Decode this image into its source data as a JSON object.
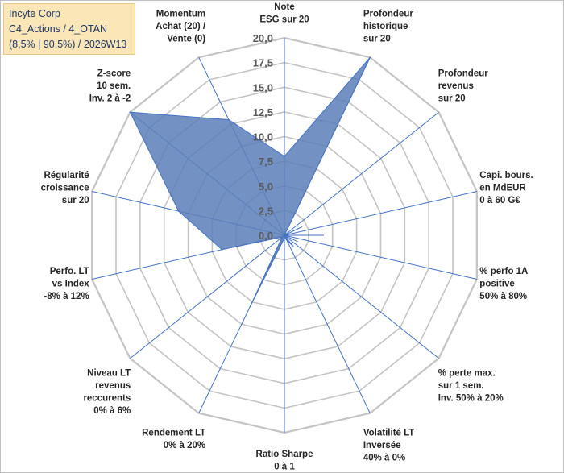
{
  "title_box": {
    "line1": "Incyte Corp",
    "line2": "C4_Actions / 4_OTAN",
    "line3": "(8,5% | 90,5%) / 2026W13"
  },
  "chart_data": {
    "type": "radar",
    "rmin": 0,
    "rmax": 20,
    "tick_step": 2.5,
    "tick_labels": [
      "0,0",
      "2,5",
      "5,0",
      "7,5",
      "10,0",
      "12,5",
      "15,0",
      "17,5",
      "20,0"
    ],
    "fill_color": "#5b7fb8",
    "line_color": "#4472c4",
    "grid_color": "#c4c4c4",
    "axes": [
      {
        "label": [
          "Note",
          "ESG sur 20"
        ],
        "value": 8.0
      },
      {
        "label": [
          "Profondeur",
          "historique",
          "sur 20"
        ],
        "value": 20.0
      },
      {
        "label": [
          "Profondeur",
          "revenus",
          "sur 20"
        ],
        "value": 0.0
      },
      {
        "label": [
          "Capi. bours.",
          "en MdEUR",
          "0 à 60 G€"
        ],
        "value": 0.0
      },
      {
        "label": [
          "% perfo 1A",
          "positive",
          "50% à 80%"
        ],
        "value": 0.0
      },
      {
        "label": [
          "% perte max.",
          "sur 1 sem.",
          "Inv. 50% à 20%"
        ],
        "value": 0.0
      },
      {
        "label": [
          "Volatilité LT",
          "Inversée",
          "40% à 0%"
        ],
        "value": 0.5
      },
      {
        "label": [
          "Ratio Sharpe",
          "0 à 1"
        ],
        "value": 0.3
      },
      {
        "label": [
          "Rendement LT",
          "0% à 20%"
        ],
        "value": 8.0
      },
      {
        "label": [
          "Niveau LT",
          "revenus",
          "reccurents",
          "0% à 6%"
        ],
        "value": 0.3
      },
      {
        "label": [
          "Perfo. LT",
          "vs Index",
          "-8% à 12%"
        ],
        "value": 6.5
      },
      {
        "label": [
          "Régularité",
          "croissance",
          "sur 20"
        ],
        "value": 11.0
      },
      {
        "label": [
          "Z-score",
          "10 sem.",
          "Inv. 2 à -2"
        ],
        "value": 20.0
      },
      {
        "label": [
          "Momentum",
          "Achat (20) /",
          "Vente (0)"
        ],
        "value": 13.0
      }
    ],
    "extra_points": [
      {
        "between": [
          2,
          3
        ],
        "value": 2.0,
        "frac": 0.5
      },
      {
        "between": [
          3,
          4
        ],
        "value": 4.0,
        "frac": 0.5
      },
      {
        "between": [
          4,
          5
        ],
        "value": 1.5,
        "frac": 0.5
      },
      {
        "between": [
          5,
          6
        ],
        "value": 1.5,
        "frac": 0.5
      }
    ]
  }
}
